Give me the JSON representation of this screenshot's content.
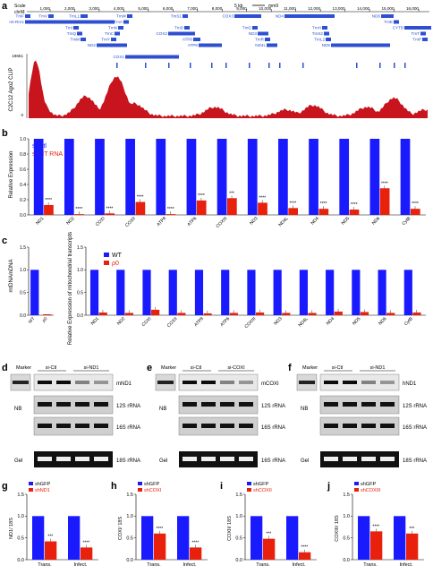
{
  "colors": {
    "blue": "#1a1aff",
    "red": "#e8200c",
    "track_blue": "#2e4fd1",
    "clip_red": "#c8141c"
  },
  "panel_a": {
    "letter": "a",
    "scale_label": "Scale",
    "scale_value": "5 kb",
    "genome": "mm9",
    "chrom_label": "chrM:",
    "ticks": [
      "1,000",
      "2,000",
      "3,000",
      "4,000",
      "5,000",
      "6,000",
      "7,000",
      "8,000",
      "9,000",
      "10,000",
      "11,000",
      "12,000",
      "13,000",
      "14,000",
      "15,000",
      "16,000"
    ],
    "genes": [
      "TmF",
      "mt-Rnr1",
      "TmV",
      "mt-Rnr2",
      "TmL1",
      "ND1",
      "TmI",
      "TmQ",
      "TmM",
      "ND2",
      "TmW",
      "TmA",
      "TmN",
      "TmC",
      "TmY",
      "COX1",
      "TmS1",
      "TmD",
      "COX2",
      "ATP8",
      "ATP6",
      "COX3",
      "TmG",
      "ND3",
      "TmR",
      "ND4L",
      "ND4",
      "TmH",
      "TmS2",
      "TmL2",
      "ND5",
      "ND6",
      "TmE",
      "CYTB",
      "TmT",
      "TmP"
    ],
    "track_label": "C2C12 Ago2 CLIP",
    "y_top": "19651",
    "y_bottom": "0"
  },
  "panel_b": {
    "letter": "b",
    "ylabel": "Relative Expression",
    "legend": [
      "si-Ctl",
      "si-MT RNA"
    ],
    "chart_data": {
      "type": "bar",
      "categories": [
        "ND1",
        "ND2",
        "COXI",
        "COXII",
        "ATP8",
        "ATP6",
        "COXIII",
        "ND3",
        "ND4L",
        "ND4",
        "ND5",
        "ND6",
        "CytB"
      ],
      "ylim": [
        0,
        1.0
      ],
      "yticks": [
        "0.0",
        "0.2",
        "0.4",
        "0.6",
        "0.8",
        "1.0"
      ],
      "series": [
        {
          "name": "si-Ctl",
          "values": [
            1,
            1,
            1,
            1,
            1,
            1,
            1,
            1,
            1,
            1,
            1,
            1,
            1
          ]
        },
        {
          "name": "si-MT RNA",
          "values": [
            0.13,
            0.01,
            0.02,
            0.17,
            0.01,
            0.19,
            0.22,
            0.16,
            0.09,
            0.08,
            0.07,
            0.35,
            0.08
          ]
        }
      ],
      "sig": [
        "****",
        "****",
        "****",
        "****",
        "****",
        "****",
        "***",
        "****",
        "****",
        "****",
        "****",
        "****",
        "****"
      ]
    }
  },
  "panel_c": {
    "letter": "c",
    "left": {
      "ylabel": "mtDNA/nDNA",
      "categories": [
        "WT",
        "ρ0"
      ],
      "values": [
        1.0,
        0.02
      ],
      "ylim": [
        0,
        1.5
      ],
      "yticks": [
        "0.0",
        "0.5",
        "1.0",
        "1.5"
      ]
    },
    "right": {
      "ylabel": "Relative Expression of mitochondrial transcripts",
      "legend": [
        "WT",
        "ρ0"
      ],
      "chart_data": {
        "type": "bar",
        "categories": [
          "ND1",
          "ND2",
          "COXI",
          "COXII",
          "ATP8",
          "ATP6",
          "COXIII",
          "ND3",
          "ND4L",
          "ND4",
          "ND5",
          "ND6",
          "CytB"
        ],
        "ylim": [
          0,
          1.5
        ],
        "yticks": [
          "0.0",
          "0.5",
          "1.0",
          "1.5"
        ],
        "series": [
          {
            "name": "WT",
            "values": [
              1,
              1,
              1,
              1,
              1,
              1,
              1,
              1,
              1,
              1,
              1,
              1,
              1
            ]
          },
          {
            "name": "ρ0",
            "values": [
              0.06,
              0.05,
              0.12,
              0.05,
              0.04,
              0.05,
              0.06,
              0.05,
              0.05,
              0.08,
              0.07,
              0.05,
              0.06
            ]
          }
        ]
      }
    }
  },
  "blots": [
    {
      "letter": "d",
      "marker": "Marker",
      "groups": [
        "si-Ctl",
        "si-ND1"
      ],
      "target": "mND1",
      "nb": "NB",
      "rows": [
        "12S rRNA",
        "16S rRNA"
      ],
      "gel": "Gel",
      "gel_row": "18S rRNA"
    },
    {
      "letter": "e",
      "marker": "Marker",
      "groups": [
        "si-Ctl",
        "si-COXI"
      ],
      "target": "mCOXI",
      "nb": "NB",
      "rows": [
        "12S rRNA",
        "16S rRNA"
      ],
      "gel": "Gel",
      "gel_row": "16S rRNA"
    },
    {
      "letter": "f",
      "marker": "Marker",
      "groups": [
        "si-Ctl",
        "si-ND1"
      ],
      "target": "hND1",
      "nb": "NB",
      "rows": [
        "12S rRNA",
        "16S rRNA"
      ],
      "gel": "Gel",
      "gel_row": "18S rRNA"
    }
  ],
  "small_charts": [
    {
      "letter": "g",
      "ylabel": "ND1/ 18S",
      "legend": [
        "shGFP",
        "shND1"
      ],
      "chart_data": {
        "type": "bar",
        "categories": [
          "Trans.",
          "Infect."
        ],
        "ylim": [
          0,
          1.5
        ],
        "yticks": [
          "0.0",
          "0.5",
          "1.0",
          "1.5"
        ],
        "series": [
          {
            "name": "shGFP",
            "values": [
              1.0,
              1.0
            ]
          },
          {
            "name": "shND1",
            "values": [
              0.42,
              0.28
            ]
          }
        ],
        "sig": [
          "***",
          "****"
        ]
      }
    },
    {
      "letter": "h",
      "ylabel": "COXI/ 18S",
      "legend": [
        "shGFP",
        "shCOXI"
      ],
      "chart_data": {
        "type": "bar",
        "categories": [
          "Trans.",
          "Infect."
        ],
        "ylim": [
          0,
          1.5
        ],
        "yticks": [
          "0.0",
          "0.5",
          "1.0",
          "1.5"
        ],
        "series": [
          {
            "name": "shGFP",
            "values": [
              1.0,
              1.0
            ]
          },
          {
            "name": "shCOXI",
            "values": [
              0.6,
              0.28
            ]
          }
        ],
        "sig": [
          "****",
          "****"
        ]
      }
    },
    {
      "letter": "i",
      "ylabel": "COXII/ 18S",
      "legend": [
        "shGFP",
        "shCOXII"
      ],
      "chart_data": {
        "type": "bar",
        "categories": [
          "Trans.",
          "Infect."
        ],
        "ylim": [
          0,
          1.5
        ],
        "yticks": [
          "0.0",
          "0.5",
          "1.0",
          "1.5"
        ],
        "series": [
          {
            "name": "shGFP",
            "values": [
              1.0,
              1.0
            ]
          },
          {
            "name": "shCOXII",
            "values": [
              0.48,
              0.17
            ]
          }
        ],
        "sig": [
          "***",
          "****"
        ]
      }
    },
    {
      "letter": "j",
      "ylabel": "COXIII/ 18S",
      "legend": [
        "shGFP",
        "shCOXIII"
      ],
      "chart_data": {
        "type": "bar",
        "categories": [
          "Trans.",
          "Infect."
        ],
        "ylim": [
          0,
          1.5
        ],
        "yticks": [
          "0.0",
          "0.5",
          "1.0",
          "1.5"
        ],
        "series": [
          {
            "name": "shGFP",
            "values": [
              1.0,
              1.0
            ]
          },
          {
            "name": "shCOXIII",
            "values": [
              0.65,
              0.6
            ]
          }
        ],
        "sig": [
          "****",
          "***"
        ]
      }
    }
  ]
}
